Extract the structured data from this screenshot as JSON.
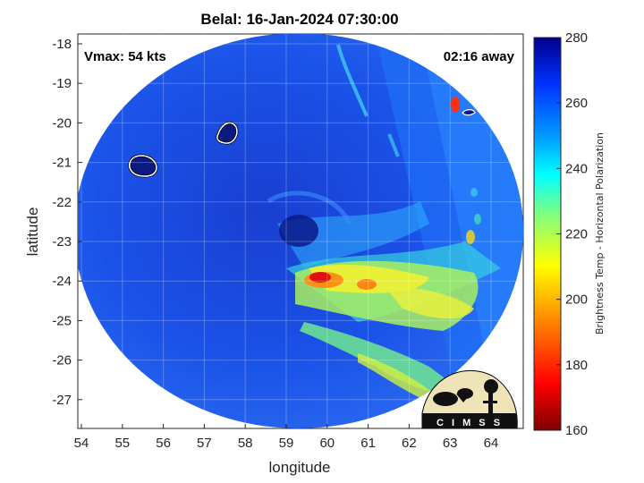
{
  "figure": {
    "title": "Belal: 16-Jan-2024 07:30:00",
    "xlabel": "longitude",
    "ylabel": "latitude",
    "vmax_text": "Vmax: 54 kts",
    "away_text": "02:16 away",
    "logo_text": "C I M S S"
  },
  "colorbar": {
    "label": "Brightness Temp - Horizontal Polarization",
    "ticks": [
      "280",
      "260",
      "240",
      "220",
      "200",
      "180",
      "160"
    ]
  },
  "axes": {
    "x_ticks": [
      "54",
      "55",
      "56",
      "57",
      "58",
      "59",
      "60",
      "61",
      "62",
      "63",
      "64"
    ],
    "y_ticks": [
      "-18",
      "-19",
      "-20",
      "-21",
      "-22",
      "-23",
      "-24",
      "-25",
      "-26",
      "-27"
    ]
  }
}
